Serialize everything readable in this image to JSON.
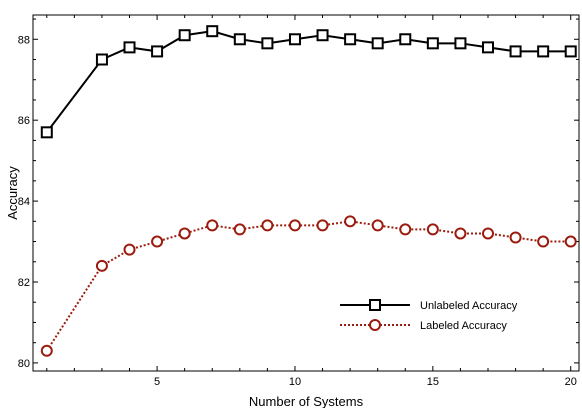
{
  "chart_data": {
    "type": "line",
    "title": "",
    "xlabel": "Number of Systems",
    "ylabel": "Accuracy",
    "xlim": [
      0.5,
      20.3
    ],
    "ylim": [
      79.8,
      88.6
    ],
    "xticks": [
      5,
      10,
      15,
      20
    ],
    "yticks": [
      80,
      82,
      84,
      86,
      88
    ],
    "x_tick_labels": [
      "5",
      "10",
      "15",
      "20"
    ],
    "y_tick_labels": [
      "80",
      "82",
      "84",
      "86",
      "88"
    ],
    "grid": false,
    "legend_position": "lower-right",
    "series": [
      {
        "name": "Unlabeled Accuracy",
        "color": "#000000",
        "line_style": "solid",
        "marker": "square",
        "x": [
          1,
          3,
          4,
          5,
          6,
          7,
          8,
          9,
          10,
          11,
          12,
          13,
          14,
          15,
          16,
          17,
          18,
          19,
          20
        ],
        "y": [
          85.7,
          87.5,
          87.8,
          87.7,
          88.1,
          88.2,
          88.0,
          87.9,
          88.0,
          88.1,
          88.0,
          87.9,
          88.0,
          87.9,
          87.9,
          87.8,
          87.7,
          87.7,
          87.7
        ]
      },
      {
        "name": "Labeled Accuracy",
        "color": "#9b1c0e",
        "line_style": "dotted",
        "marker": "circle",
        "x": [
          1,
          3,
          4,
          5,
          6,
          7,
          8,
          9,
          10,
          11,
          12,
          13,
          14,
          15,
          16,
          17,
          18,
          19,
          20
        ],
        "y": [
          80.3,
          82.4,
          82.8,
          83.0,
          83.2,
          83.4,
          83.3,
          83.4,
          83.4,
          83.4,
          83.5,
          83.4,
          83.3,
          83.3,
          83.2,
          83.2,
          83.1,
          83.0,
          83.0
        ]
      }
    ]
  }
}
